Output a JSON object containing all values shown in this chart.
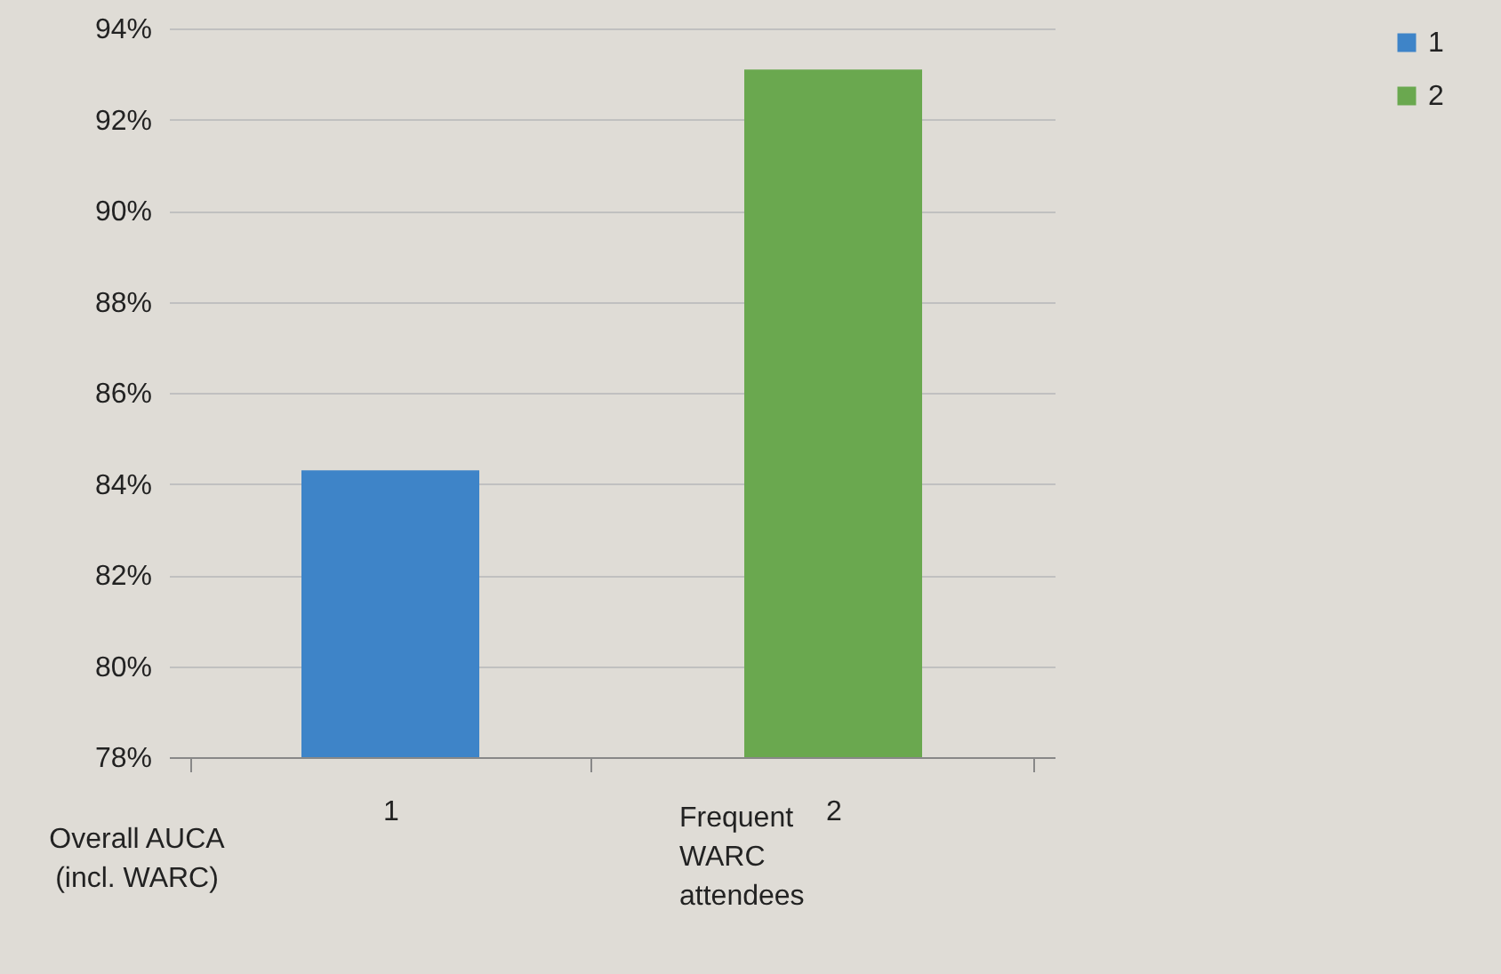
{
  "chart_data": {
    "type": "bar",
    "categories": [
      "1",
      "2"
    ],
    "series": [
      {
        "name": "1",
        "color": "#3e84c8",
        "values": [
          84.3,
          null
        ]
      },
      {
        "name": "2",
        "color": "#6aa84f",
        "values": [
          null,
          93.1
        ]
      }
    ],
    "ylim": [
      78,
      94
    ],
    "yticks": [
      {
        "value": 78,
        "label": "78%"
      },
      {
        "value": 80,
        "label": "80%"
      },
      {
        "value": 82,
        "label": "82%"
      },
      {
        "value": 84,
        "label": "84%"
      },
      {
        "value": 86,
        "label": "86%"
      },
      {
        "value": 88,
        "label": "88%"
      },
      {
        "value": 90,
        "label": "90%"
      },
      {
        "value": 92,
        "label": "92%"
      },
      {
        "value": 94,
        "label": "94%"
      }
    ],
    "grid": "y",
    "legend": "right",
    "annotations": [
      "Overall AUCA (incl. WARC)",
      "Frequent WARC attendees"
    ]
  }
}
